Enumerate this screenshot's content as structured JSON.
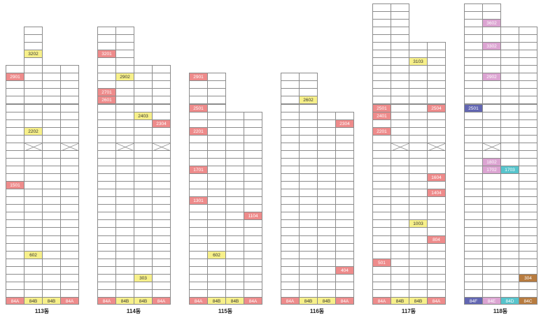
{
  "colors": {
    "84A": "#ee8b8b",
    "84B": "#f7f08a",
    "84C": "#b77b3f",
    "84D": "#56c4cc",
    "84E": "#dca4d2",
    "84F": "#6266b2",
    "grid": "#8c8c8c"
  },
  "top_floor": 38,
  "buildings": [
    {
      "name": "113동",
      "lines": [
        {
          "type": "84A",
          "floors": 30
        },
        {
          "type": "84B",
          "floors": 35
        },
        {
          "type": "84B",
          "floors": 30
        },
        {
          "type": "84A",
          "floors": 30
        }
      ],
      "x_floor": 20,
      "x_lines": [
        1,
        3
      ],
      "units": [
        {
          "label": "3202",
          "line": 1,
          "floor": 32,
          "type": "84B"
        },
        {
          "label": "2901",
          "line": 0,
          "floor": 29,
          "type": "84A"
        },
        {
          "label": "2202",
          "line": 1,
          "floor": 22,
          "type": "84B"
        },
        {
          "label": "1501",
          "line": 0,
          "floor": 15,
          "type": "84A"
        },
        {
          "label": "602",
          "line": 1,
          "floor": 6,
          "type": "84B"
        }
      ]
    },
    {
      "name": "114동",
      "lines": [
        {
          "type": "84A",
          "floors": 35
        },
        {
          "type": "84B",
          "floors": 35
        },
        {
          "type": "84B",
          "floors": 30
        },
        {
          "type": "84A",
          "floors": 30
        }
      ],
      "x_floor": 20,
      "x_lines": [
        1,
        3
      ],
      "units": [
        {
          "label": "3201",
          "line": 0,
          "floor": 32,
          "type": "84A"
        },
        {
          "label": "2902",
          "line": 1,
          "floor": 29,
          "type": "84B"
        },
        {
          "label": "2701",
          "line": 0,
          "floor": 27,
          "type": "84A"
        },
        {
          "label": "2601",
          "line": 0,
          "floor": 26,
          "type": "84A"
        },
        {
          "label": "2403",
          "line": 2,
          "floor": 24,
          "type": "84B"
        },
        {
          "label": "2304",
          "line": 3,
          "floor": 23,
          "type": "84A"
        },
        {
          "label": "303",
          "line": 2,
          "floor": 3,
          "type": "84B"
        }
      ]
    },
    {
      "name": "115동",
      "lines": [
        {
          "type": "84A",
          "floors": 29
        },
        {
          "type": "84B",
          "floors": 29
        },
        {
          "type": "84B",
          "floors": 24
        },
        {
          "type": "84A",
          "floors": 24
        }
      ],
      "x_floor": null,
      "x_lines": [],
      "units": [
        {
          "label": "2901",
          "line": 0,
          "floor": 29,
          "type": "84A"
        },
        {
          "label": "2501",
          "line": 0,
          "floor": 25,
          "type": "84A"
        },
        {
          "label": "2201",
          "line": 0,
          "floor": 22,
          "type": "84A"
        },
        {
          "label": "1701",
          "line": 0,
          "floor": 17,
          "type": "84A"
        },
        {
          "label": "1301",
          "line": 0,
          "floor": 13,
          "type": "84A"
        },
        {
          "label": "1104",
          "line": 3,
          "floor": 11,
          "type": "84A"
        },
        {
          "label": "602",
          "line": 1,
          "floor": 6,
          "type": "84B"
        }
      ]
    },
    {
      "name": "116동",
      "lines": [
        {
          "type": "84A",
          "floors": 29
        },
        {
          "type": "84B",
          "floors": 29
        },
        {
          "type": "84B",
          "floors": 24
        },
        {
          "type": "84A",
          "floors": 24
        }
      ],
      "x_floor": null,
      "x_lines": [],
      "units": [
        {
          "label": "2602",
          "line": 1,
          "floor": 26,
          "type": "84B"
        },
        {
          "label": "2304",
          "line": 3,
          "floor": 23,
          "type": "84A"
        },
        {
          "label": "404",
          "line": 3,
          "floor": 4,
          "type": "84A"
        }
      ]
    },
    {
      "name": "117동",
      "lines": [
        {
          "type": "84A",
          "floors": 38
        },
        {
          "type": "84B",
          "floors": 38
        },
        {
          "type": "84B",
          "floors": 33
        },
        {
          "type": "84A",
          "floors": 33
        }
      ],
      "x_floor": 20,
      "x_lines": [
        1,
        3
      ],
      "units": [
        {
          "label": "3103",
          "line": 2,
          "floor": 31,
          "type": "84B"
        },
        {
          "label": "2501",
          "line": 0,
          "floor": 25,
          "type": "84A"
        },
        {
          "label": "2504",
          "line": 3,
          "floor": 25,
          "type": "84A"
        },
        {
          "label": "2401",
          "line": 0,
          "floor": 24,
          "type": "84A"
        },
        {
          "label": "2201",
          "line": 0,
          "floor": 22,
          "type": "84A"
        },
        {
          "label": "1604",
          "line": 3,
          "floor": 16,
          "type": "84A"
        },
        {
          "label": "1404",
          "line": 3,
          "floor": 14,
          "type": "84A"
        },
        {
          "label": "1003",
          "line": 2,
          "floor": 10,
          "type": "84B"
        },
        {
          "label": "804",
          "line": 3,
          "floor": 8,
          "type": "84A"
        },
        {
          "label": "501",
          "line": 0,
          "floor": 5,
          "type": "84A"
        }
      ]
    },
    {
      "name": "118동",
      "lines": [
        {
          "type": "84F",
          "floors": 38
        },
        {
          "type": "84E",
          "floors": 38
        },
        {
          "type": "84D",
          "floors": 35
        },
        {
          "type": "84C",
          "floors": 35
        }
      ],
      "x_floor": 20,
      "x_lines": [
        1
      ],
      "units": [
        {
          "label": "3602",
          "line": 1,
          "floor": 36,
          "type": "84E"
        },
        {
          "label": "3302",
          "line": 1,
          "floor": 33,
          "type": "84E"
        },
        {
          "label": "2902",
          "line": 1,
          "floor": 29,
          "type": "84E"
        },
        {
          "label": "2501",
          "line": 0,
          "floor": 25,
          "type": "84F"
        },
        {
          "label": "1802",
          "line": 1,
          "floor": 18,
          "type": "84E"
        },
        {
          "label": "1702",
          "line": 1,
          "floor": 17,
          "type": "84E"
        },
        {
          "label": "1703",
          "line": 2,
          "floor": 17,
          "type": "84D"
        },
        {
          "label": "304",
          "line": 3,
          "floor": 3,
          "type": "84C"
        }
      ]
    }
  ]
}
